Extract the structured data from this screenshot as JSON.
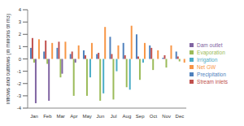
{
  "chart_data": {
    "type": "bar",
    "y_label": "Inflows and outflows (in millions of m3)",
    "categories": [
      "Jan",
      "Feb",
      "Mar",
      "Apr",
      "May",
      "Jun",
      "Jul",
      "Aug",
      "Sep",
      "Oct",
      "Nov",
      "Dec"
    ],
    "series": [
      {
        "name": "Precipitation",
        "color": "#4f81bd",
        "values": [
          0.9,
          0.6,
          0.9,
          0.4,
          0.7,
          0.4,
          1.8,
          1.3,
          2.0,
          1.1,
          0.1,
          0.6
        ]
      },
      {
        "name": "Stream inlets",
        "color": "#c0504d",
        "values": [
          1.7,
          1.5,
          1.4,
          0.6,
          0.3,
          0.5,
          0.4,
          0.3,
          0.2,
          0.9,
          0.3,
          0.2
        ]
      },
      {
        "name": "Evaporation",
        "color": "#9bbb59",
        "values": [
          -0.3,
          -0.4,
          -1.5,
          -3.0,
          -3.0,
          -3.4,
          -3.3,
          -2.3,
          -1.7,
          -0.9,
          -0.7,
          -0.2
        ]
      },
      {
        "name": "Dam outlet",
        "color": "#8064a2",
        "values": [
          -3.6,
          -3.4,
          -1.2,
          -0.3,
          0,
          0,
          0,
          0,
          0,
          0,
          0,
          0
        ]
      },
      {
        "name": "Irrigation",
        "color": "#4bacc6",
        "values": [
          0,
          0,
          0,
          0,
          -1.5,
          -2.8,
          -1.0,
          -2.5,
          -0.3,
          0,
          0,
          0
        ]
      },
      {
        "name": "Net GW",
        "color": "#f79646",
        "values": [
          1.6,
          1.3,
          1.4,
          1.1,
          1.3,
          2.6,
          1.1,
          2.7,
          1.3,
          0.7,
          1.1,
          -0.3
        ]
      }
    ],
    "ylim": [
      -4,
      4
    ],
    "yticks": [
      -4,
      -3,
      -2,
      -1,
      0,
      1,
      2,
      3,
      4
    ],
    "grid": false,
    "legend": "right"
  }
}
